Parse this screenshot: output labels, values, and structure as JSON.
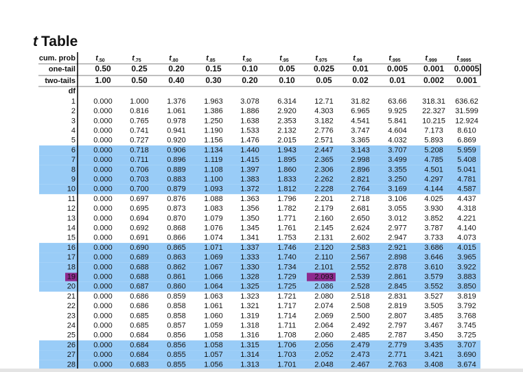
{
  "title": {
    "symbol": "t",
    "text": "Table"
  },
  "header": {
    "cum_prob": {
      "label": "cum. prob",
      "symbol": "t",
      "subscripts": [
        ".50",
        ".75",
        ".80",
        ".85",
        ".90",
        ".95",
        ".975",
        ".99",
        ".995",
        ".999",
        ".9995"
      ]
    },
    "one_tail": {
      "label": "one-tail",
      "cells": [
        "0.50",
        "0.25",
        "0.20",
        "0.15",
        "0.10",
        "0.05",
        "0.025",
        "0.01",
        "0.005",
        "0.001",
        "0.0005"
      ]
    },
    "two_tails": {
      "label": "two-tails",
      "cells": [
        "1.00",
        "0.50",
        "0.40",
        "0.30",
        "0.20",
        "0.10",
        "0.05",
        "0.02",
        "0.01",
        "0.002",
        "0.001"
      ]
    },
    "df": "df"
  },
  "rows": [
    {
      "df": "1",
      "values": [
        "0.000",
        "1.000",
        "1.376",
        "1.963",
        "3.078",
        "6.314",
        "12.71",
        "31.82",
        "63.66",
        "318.31",
        "636.62"
      ]
    },
    {
      "df": "2",
      "values": [
        "0.000",
        "0.816",
        "1.061",
        "1.386",
        "1.886",
        "2.920",
        "4.303",
        "6.965",
        "9.925",
        "22.327",
        "31.599"
      ]
    },
    {
      "df": "3",
      "values": [
        "0.000",
        "0.765",
        "0.978",
        "1.250",
        "1.638",
        "2.353",
        "3.182",
        "4.541",
        "5.841",
        "10.215",
        "12.924"
      ]
    },
    {
      "df": "4",
      "values": [
        "0.000",
        "0.741",
        "0.941",
        "1.190",
        "1.533",
        "2.132",
        "2.776",
        "3.747",
        "4.604",
        "7.173",
        "8.610"
      ]
    },
    {
      "df": "5",
      "values": [
        "0.000",
        "0.727",
        "0.920",
        "1.156",
        "1.476",
        "2.015",
        "2.571",
        "3.365",
        "4.032",
        "5.893",
        "6.869"
      ]
    },
    {
      "df": "6",
      "values": [
        "0.000",
        "0.718",
        "0.906",
        "1.134",
        "1.440",
        "1.943",
        "2.447",
        "3.143",
        "3.707",
        "5.208",
        "5.959"
      ]
    },
    {
      "df": "7",
      "values": [
        "0.000",
        "0.711",
        "0.896",
        "1.119",
        "1.415",
        "1.895",
        "2.365",
        "2.998",
        "3.499",
        "4.785",
        "5.408"
      ]
    },
    {
      "df": "8",
      "values": [
        "0.000",
        "0.706",
        "0.889",
        "1.108",
        "1.397",
        "1.860",
        "2.306",
        "2.896",
        "3.355",
        "4.501",
        "5.041"
      ]
    },
    {
      "df": "9",
      "values": [
        "0.000",
        "0.703",
        "0.883",
        "1.100",
        "1.383",
        "1.833",
        "2.262",
        "2.821",
        "3.250",
        "4.297",
        "4.781"
      ]
    },
    {
      "df": "10",
      "values": [
        "0.000",
        "0.700",
        "0.879",
        "1.093",
        "1.372",
        "1.812",
        "2.228",
        "2.764",
        "3.169",
        "4.144",
        "4.587"
      ]
    },
    {
      "df": "11",
      "values": [
        "0.000",
        "0.697",
        "0.876",
        "1.088",
        "1.363",
        "1.796",
        "2.201",
        "2.718",
        "3.106",
        "4.025",
        "4.437"
      ]
    },
    {
      "df": "12",
      "values": [
        "0.000",
        "0.695",
        "0.873",
        "1.083",
        "1.356",
        "1.782",
        "2.179",
        "2.681",
        "3.055",
        "3.930",
        "4.318"
      ]
    },
    {
      "df": "13",
      "values": [
        "0.000",
        "0.694",
        "0.870",
        "1.079",
        "1.350",
        "1.771",
        "2.160",
        "2.650",
        "3.012",
        "3.852",
        "4.221"
      ]
    },
    {
      "df": "14",
      "values": [
        "0.000",
        "0.692",
        "0.868",
        "1.076",
        "1.345",
        "1.761",
        "2.145",
        "2.624",
        "2.977",
        "3.787",
        "4.140"
      ]
    },
    {
      "df": "15",
      "values": [
        "0.000",
        "0.691",
        "0.866",
        "1.074",
        "1.341",
        "1.753",
        "2.131",
        "2.602",
        "2.947",
        "3.733",
        "4.073"
      ]
    },
    {
      "df": "16",
      "values": [
        "0.000",
        "0.690",
        "0.865",
        "1.071",
        "1.337",
        "1.746",
        "2.120",
        "2.583",
        "2.921",
        "3.686",
        "4.015"
      ]
    },
    {
      "df": "17",
      "values": [
        "0.000",
        "0.689",
        "0.863",
        "1.069",
        "1.333",
        "1.740",
        "2.110",
        "2.567",
        "2.898",
        "3.646",
        "3.965"
      ]
    },
    {
      "df": "18",
      "values": [
        "0.000",
        "0.688",
        "0.862",
        "1.067",
        "1.330",
        "1.734",
        "2.101",
        "2.552",
        "2.878",
        "3.610",
        "3.922"
      ]
    },
    {
      "df": "19",
      "values": [
        "0.000",
        "0.688",
        "0.861",
        "1.066",
        "1.328",
        "1.729",
        "2.093",
        "2.539",
        "2.861",
        "3.579",
        "3.883"
      ]
    },
    {
      "df": "20",
      "values": [
        "0.000",
        "0.687",
        "0.860",
        "1.064",
        "1.325",
        "1.725",
        "2.086",
        "2.528",
        "2.845",
        "3.552",
        "3.850"
      ]
    },
    {
      "df": "21",
      "values": [
        "0.000",
        "0.686",
        "0.859",
        "1.063",
        "1.323",
        "1.721",
        "2.080",
        "2.518",
        "2.831",
        "3.527",
        "3.819"
      ]
    },
    {
      "df": "22",
      "values": [
        "0.000",
        "0.686",
        "0.858",
        "1.061",
        "1.321",
        "1.717",
        "2.074",
        "2.508",
        "2.819",
        "3.505",
        "3.792"
      ]
    },
    {
      "df": "23",
      "values": [
        "0.000",
        "0.685",
        "0.858",
        "1.060",
        "1.319",
        "1.714",
        "2.069",
        "2.500",
        "2.807",
        "3.485",
        "3.768"
      ]
    },
    {
      "df": "24",
      "values": [
        "0.000",
        "0.685",
        "0.857",
        "1.059",
        "1.318",
        "1.711",
        "2.064",
        "2.492",
        "2.797",
        "3.467",
        "3.745"
      ]
    },
    {
      "df": "25",
      "values": [
        "0.000",
        "0.684",
        "0.856",
        "1.058",
        "1.316",
        "1.708",
        "2.060",
        "2.485",
        "2.787",
        "3.450",
        "3.725"
      ]
    },
    {
      "df": "26",
      "values": [
        "0.000",
        "0.684",
        "0.856",
        "1.058",
        "1.315",
        "1.706",
        "2.056",
        "2.479",
        "2.779",
        "3.435",
        "3.707"
      ]
    },
    {
      "df": "27",
      "values": [
        "0.000",
        "0.684",
        "0.855",
        "1.057",
        "1.314",
        "1.703",
        "2.052",
        "2.473",
        "2.771",
        "3.421",
        "3.690"
      ]
    },
    {
      "df": "28",
      "values": [
        "0.000",
        "0.683",
        "0.855",
        "1.056",
        "1.313",
        "1.701",
        "2.048",
        "2.467",
        "2.763",
        "3.408",
        "3.674"
      ]
    }
  ]
}
